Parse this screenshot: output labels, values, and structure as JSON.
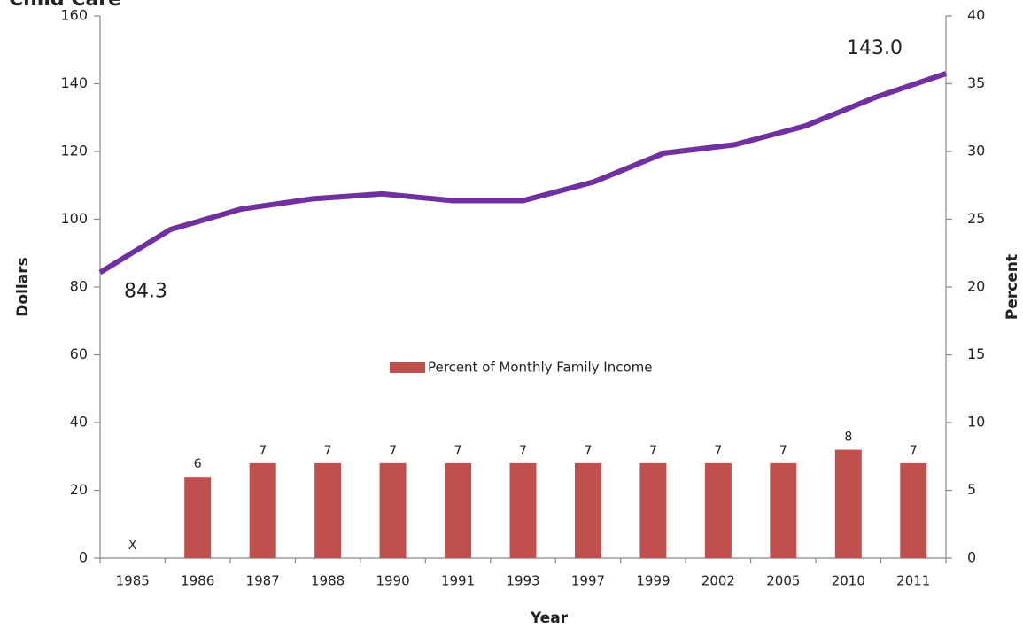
{
  "chart_data": {
    "type": "bar",
    "title": "Child Care",
    "categories": [
      "1985",
      "1986",
      "1987",
      "1988",
      "1990",
      "1991",
      "1993",
      "1997",
      "1999",
      "2002",
      "2005",
      "2010",
      "2011"
    ],
    "series": [
      {
        "name": "Percent of Monthly Family Income",
        "color": "#c0504d",
        "axis": "y2",
        "values": [
          null,
          6,
          7,
          7,
          7,
          7,
          7,
          7,
          7,
          7,
          7,
          8,
          7
        ],
        "value_labels": [
          "X",
          "6",
          "7",
          "7",
          "7",
          "7",
          "7",
          "7",
          "7",
          "7",
          "7",
          "8",
          "7"
        ]
      }
    ],
    "line": {
      "color": "#7030a0",
      "values": [
        84.3,
        97,
        103,
        106,
        107.5,
        105.5,
        105.5,
        111,
        119.5,
        122,
        127.5,
        136,
        143.0
      ],
      "value_labels": [
        "84.3",
        null,
        null,
        null,
        null,
        null,
        null,
        null,
        null,
        null,
        null,
        null,
        "143.0"
      ]
    },
    "xlabel": "Year",
    "ylabel": "Dollars",
    "y2label": "Percent",
    "ylim": [
      0,
      160
    ],
    "yticks": [
      0,
      20,
      40,
      60,
      80,
      100,
      120,
      140,
      160
    ],
    "y2lim": [
      0,
      40
    ],
    "y2ticks": [
      0,
      5,
      10,
      15,
      20,
      25,
      30,
      35,
      40
    ]
  }
}
